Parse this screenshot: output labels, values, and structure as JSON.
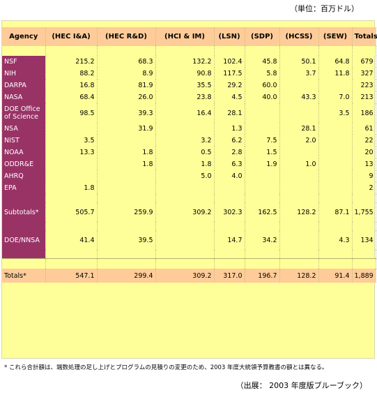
{
  "unit_label": "（単位：百万ドル）",
  "headers": [
    "Agency",
    "(HEC I&A)",
    "(HEC R&D)",
    "(HCI & IM)",
    "(LSN)",
    "(SDP)",
    "(HCSS)",
    "(SEW)",
    "Totals"
  ],
  "rows": [
    {
      "agency": "NSF",
      "vals": [
        "215.2",
        "68.3",
        "132.2",
        "102.4",
        "45.8",
        "50.1",
        "64.8",
        "679"
      ]
    },
    {
      "agency": "NIH",
      "vals": [
        "88.2",
        "8.9",
        "90.8",
        "117.5",
        "5.8",
        "3.7",
        "11.8",
        "327"
      ]
    },
    {
      "agency": "DARPA",
      "vals": [
        "16.8",
        "81.9",
        "35.5",
        "29.2",
        "60.0",
        "",
        "",
        "223"
      ]
    },
    {
      "agency": "NASA",
      "vals": [
        "68.4",
        "26.0",
        "23.8",
        "4.5",
        "40.0",
        "43.3",
        "7.0",
        "213"
      ]
    },
    {
      "agency": "DOE Office of Science",
      "vals": [
        "98.5",
        "39.3",
        "16.4",
        "28.1",
        "",
        "",
        "3.5",
        "186"
      ]
    },
    {
      "agency": "NSA",
      "vals": [
        "",
        "31.9",
        "",
        "1.3",
        "",
        "28.1",
        "",
        "61"
      ]
    },
    {
      "agency": "NIST",
      "vals": [
        "3.5",
        "",
        "3.2",
        "6.2",
        "7.5",
        "2.0",
        "",
        "22"
      ]
    },
    {
      "agency": "NOAA",
      "vals": [
        "13.3",
        "1.8",
        "0.5",
        "2.8",
        "1.5",
        "",
        "",
        "20"
      ]
    },
    {
      "agency": "ODDR&E",
      "vals": [
        "",
        "1.8",
        "1.8",
        "6.3",
        "1.9",
        "1.0",
        "",
        "13"
      ]
    },
    {
      "agency": "AHRQ",
      "vals": [
        "",
        "",
        "5.0",
        "4.0",
        "",
        "",
        "",
        "9"
      ]
    },
    {
      "agency": "EPA",
      "vals": [
        "1.8",
        "",
        "",
        "",
        "",
        "",
        "",
        "2"
      ]
    }
  ],
  "subtotal": {
    "agency": "Subtotals*",
    "vals": [
      "505.7",
      "259.9",
      "309.2",
      "302.3",
      "162.5",
      "128.2",
      "87.1",
      "1,755"
    ]
  },
  "doe": {
    "agency": "DOE/NNSA",
    "vals": [
      "41.4",
      "39.5",
      "",
      "14.7",
      "34.2",
      "",
      "4.3",
      "134"
    ]
  },
  "total": {
    "agency": "Totals*",
    "vals": [
      "547.1",
      "299.4",
      "309.2",
      "317.0",
      "196.7",
      "128.2",
      "91.4",
      "1,889"
    ]
  },
  "footnote": "* これら合計額は、端数処理の足し上げとプログラムの見積りの変更のため、2003 年度大統領予算教書の額とは異なる。",
  "source": "（出展： 2003 年度版ブルーブック）"
}
